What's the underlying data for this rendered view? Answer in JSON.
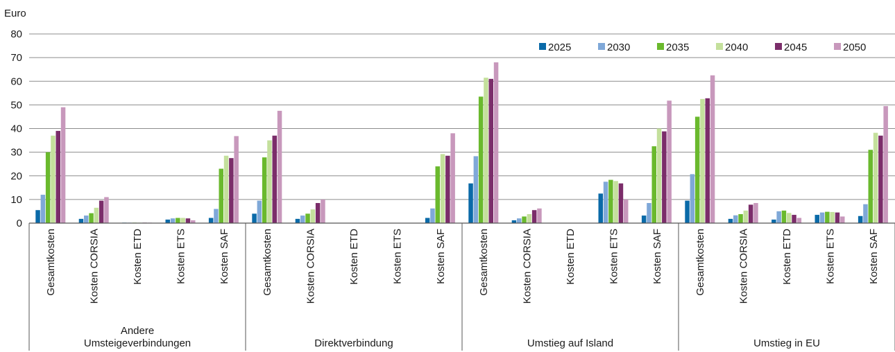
{
  "chart_data": {
    "type": "bar",
    "ylabel": "Euro",
    "ylim": [
      0,
      80
    ],
    "yticks": [
      0,
      10,
      20,
      30,
      40,
      50,
      60,
      70,
      80
    ],
    "grid": true,
    "legend_position": "top-right",
    "colors": [
      "#0a6aa8",
      "#7fa8d8",
      "#6ab92d",
      "#c4e09c",
      "#7b2d6a",
      "#c898bc"
    ],
    "groups": [
      {
        "label": [
          "Andere",
          "Umsteigeverbindungen"
        ],
        "categories": [
          "Gesamtkosten",
          "Kosten CORSIA",
          "Kosten ETD",
          "Kosten ETS",
          "Kosten SAF"
        ]
      },
      {
        "label": [
          "Direktverbindung"
        ],
        "categories": [
          "Gesamtkosten",
          "Kosten CORSIA",
          "Kosten ETD",
          "Kosten ETS",
          "Kosten SAF"
        ]
      },
      {
        "label": [
          "Umstieg auf Island"
        ],
        "categories": [
          "Gesamtkosten",
          "Kosten CORSIA",
          "Kosten ETD",
          "Kosten ETS",
          "Kosten SAF"
        ]
      },
      {
        "label": [
          "Umstieg in EU"
        ],
        "categories": [
          "Gesamtkosten",
          "Kosten CORSIA",
          "Kosten ETD",
          "Kosten ETS",
          "Kosten SAF"
        ]
      }
    ],
    "series": [
      {
        "name": "2025",
        "values": [
          5.5,
          1.8,
          0.2,
          1.5,
          2.2,
          4.0,
          1.8,
          0,
          0,
          2.2,
          16.8,
          1.2,
          0,
          12.5,
          3.2,
          9.5,
          1.8,
          1.5,
          3.5,
          3.0
        ]
      },
      {
        "name": "2030",
        "values": [
          12.0,
          3.2,
          0.2,
          2.0,
          6.0,
          9.5,
          3.2,
          0,
          0,
          6.2,
          28.3,
          2.0,
          0,
          17.5,
          8.5,
          20.7,
          3.3,
          5.0,
          4.5,
          8.0
        ]
      },
      {
        "name": "2035",
        "values": [
          30.0,
          4.2,
          0.2,
          2.2,
          23.0,
          27.8,
          4.0,
          0,
          0,
          24.0,
          53.5,
          2.8,
          0,
          18.3,
          32.5,
          45.0,
          3.8,
          5.3,
          4.8,
          31.0
        ]
      },
      {
        "name": "2040",
        "values": [
          37.0,
          6.5,
          0.2,
          2.2,
          28.5,
          35.0,
          5.8,
          0,
          0,
          29.2,
          61.5,
          3.8,
          0,
          17.8,
          40.0,
          52.5,
          5.3,
          4.3,
          4.7,
          38.2
        ]
      },
      {
        "name": "2045",
        "values": [
          39.0,
          9.5,
          0.2,
          2.0,
          27.5,
          37.0,
          8.5,
          0,
          0,
          28.5,
          61.0,
          5.5,
          0,
          16.8,
          38.8,
          52.8,
          7.8,
          3.5,
          4.5,
          37.0
        ]
      },
      {
        "name": "2050",
        "values": [
          49.0,
          11.0,
          0.2,
          1.2,
          36.8,
          47.5,
          10.0,
          0,
          0,
          38.0,
          68.0,
          6.2,
          0,
          10.0,
          51.8,
          62.5,
          8.5,
          2.2,
          2.8,
          49.5
        ]
      }
    ]
  }
}
